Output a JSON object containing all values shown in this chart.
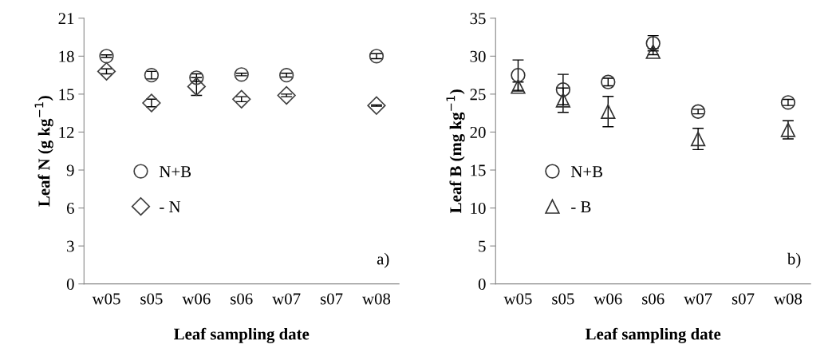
{
  "chart_data": [
    {
      "type": "scatter",
      "categories": [
        "w05",
        "s05",
        "w06",
        "s06",
        "w07",
        "s07",
        "w08"
      ],
      "xlabel": "Leaf sampling date",
      "ylabel": "Leaf N (g kg$^{−1}$)",
      "ylim": [
        0,
        21
      ],
      "yticks": [
        0,
        3,
        6,
        9,
        12,
        15,
        18,
        21
      ],
      "grid": false,
      "legend": "left",
      "annotations": [
        "a)"
      ],
      "series": [
        {
          "name": "N+B",
          "color": "#404040",
          "marker": "circle",
          "values": [
            18.0,
            16.5,
            16.3,
            16.55,
            16.5,
            null,
            18.0
          ],
          "errors": [
            0.1,
            0.3,
            0.3,
            0.1,
            0.15,
            null,
            0.2
          ]
        },
        {
          "name": "- N",
          "color": "#404040",
          "marker": "diamond",
          "values": [
            16.8,
            14.3,
            15.6,
            14.6,
            14.9,
            null,
            14.1
          ],
          "errors": [
            0.2,
            0.3,
            0.7,
            0.2,
            0.1,
            null,
            0.05
          ]
        }
      ]
    },
    {
      "type": "scatter",
      "categories": [
        "w05",
        "s05",
        "w06",
        "s06",
        "w07",
        "s07",
        "w08"
      ],
      "xlabel": "Leaf sampling date",
      "ylabel": "Leaf B (mg kg$^{−1}$)",
      "ylim": [
        0,
        35
      ],
      "yticks": [
        0,
        5,
        10,
        15,
        20,
        25,
        30,
        35
      ],
      "grid": false,
      "legend": "left",
      "annotations": [
        "b)"
      ],
      "series": [
        {
          "name": "N+B",
          "color": "#303030",
          "marker": "circle",
          "values": [
            27.5,
            25.6,
            26.6,
            31.7,
            22.7,
            null,
            23.9
          ],
          "errors": [
            2.0,
            2.0,
            0.5,
            1.0,
            0.3,
            null,
            0.4
          ]
        },
        {
          "name": "- B",
          "color": "#303030",
          "marker": "triangle",
          "values": [
            26.0,
            24.2,
            22.7,
            30.6,
            19.1,
            null,
            20.3
          ],
          "errors": [
            0.6,
            1.6,
            2.0,
            0.4,
            1.4,
            null,
            1.2
          ]
        }
      ]
    }
  ]
}
